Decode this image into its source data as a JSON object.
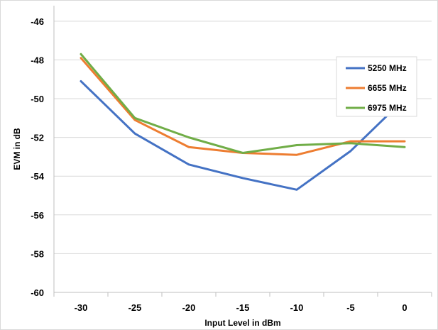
{
  "chart_data": {
    "type": "line",
    "title": "",
    "xlabel": "Input Level in dBm",
    "ylabel": "EVM in dB",
    "x": [
      -30,
      -25,
      -20,
      -15,
      -10,
      -5,
      0
    ],
    "x_tick_labels": [
      "-30",
      "-25",
      "-20",
      "-15",
      "-10",
      "-5",
      "0"
    ],
    "y_tick_labels": [
      "-46",
      "-48",
      "-50",
      "-52",
      "-54",
      "-56",
      "-58",
      "-60"
    ],
    "xlim": [
      -32.5,
      2.5
    ],
    "ylim": [
      -60,
      -45.2
    ],
    "grid": "horizontal",
    "legend_position": "right, inside plot",
    "series": [
      {
        "name": "5250 MHz",
        "color": "#4472c4",
        "values": [
          -49.1,
          -51.8,
          -53.4,
          -54.1,
          -54.7,
          -52.7,
          -50.0
        ]
      },
      {
        "name": "6655 MHz",
        "color": "#ed7d31",
        "values": [
          -47.9,
          -51.1,
          -52.5,
          -52.8,
          -52.9,
          -52.2,
          -52.2
        ]
      },
      {
        "name": "6975 MHz",
        "color": "#70ad47",
        "values": [
          -47.7,
          -51.0,
          -52.0,
          -52.8,
          -52.4,
          -52.3,
          -52.5
        ]
      }
    ]
  }
}
